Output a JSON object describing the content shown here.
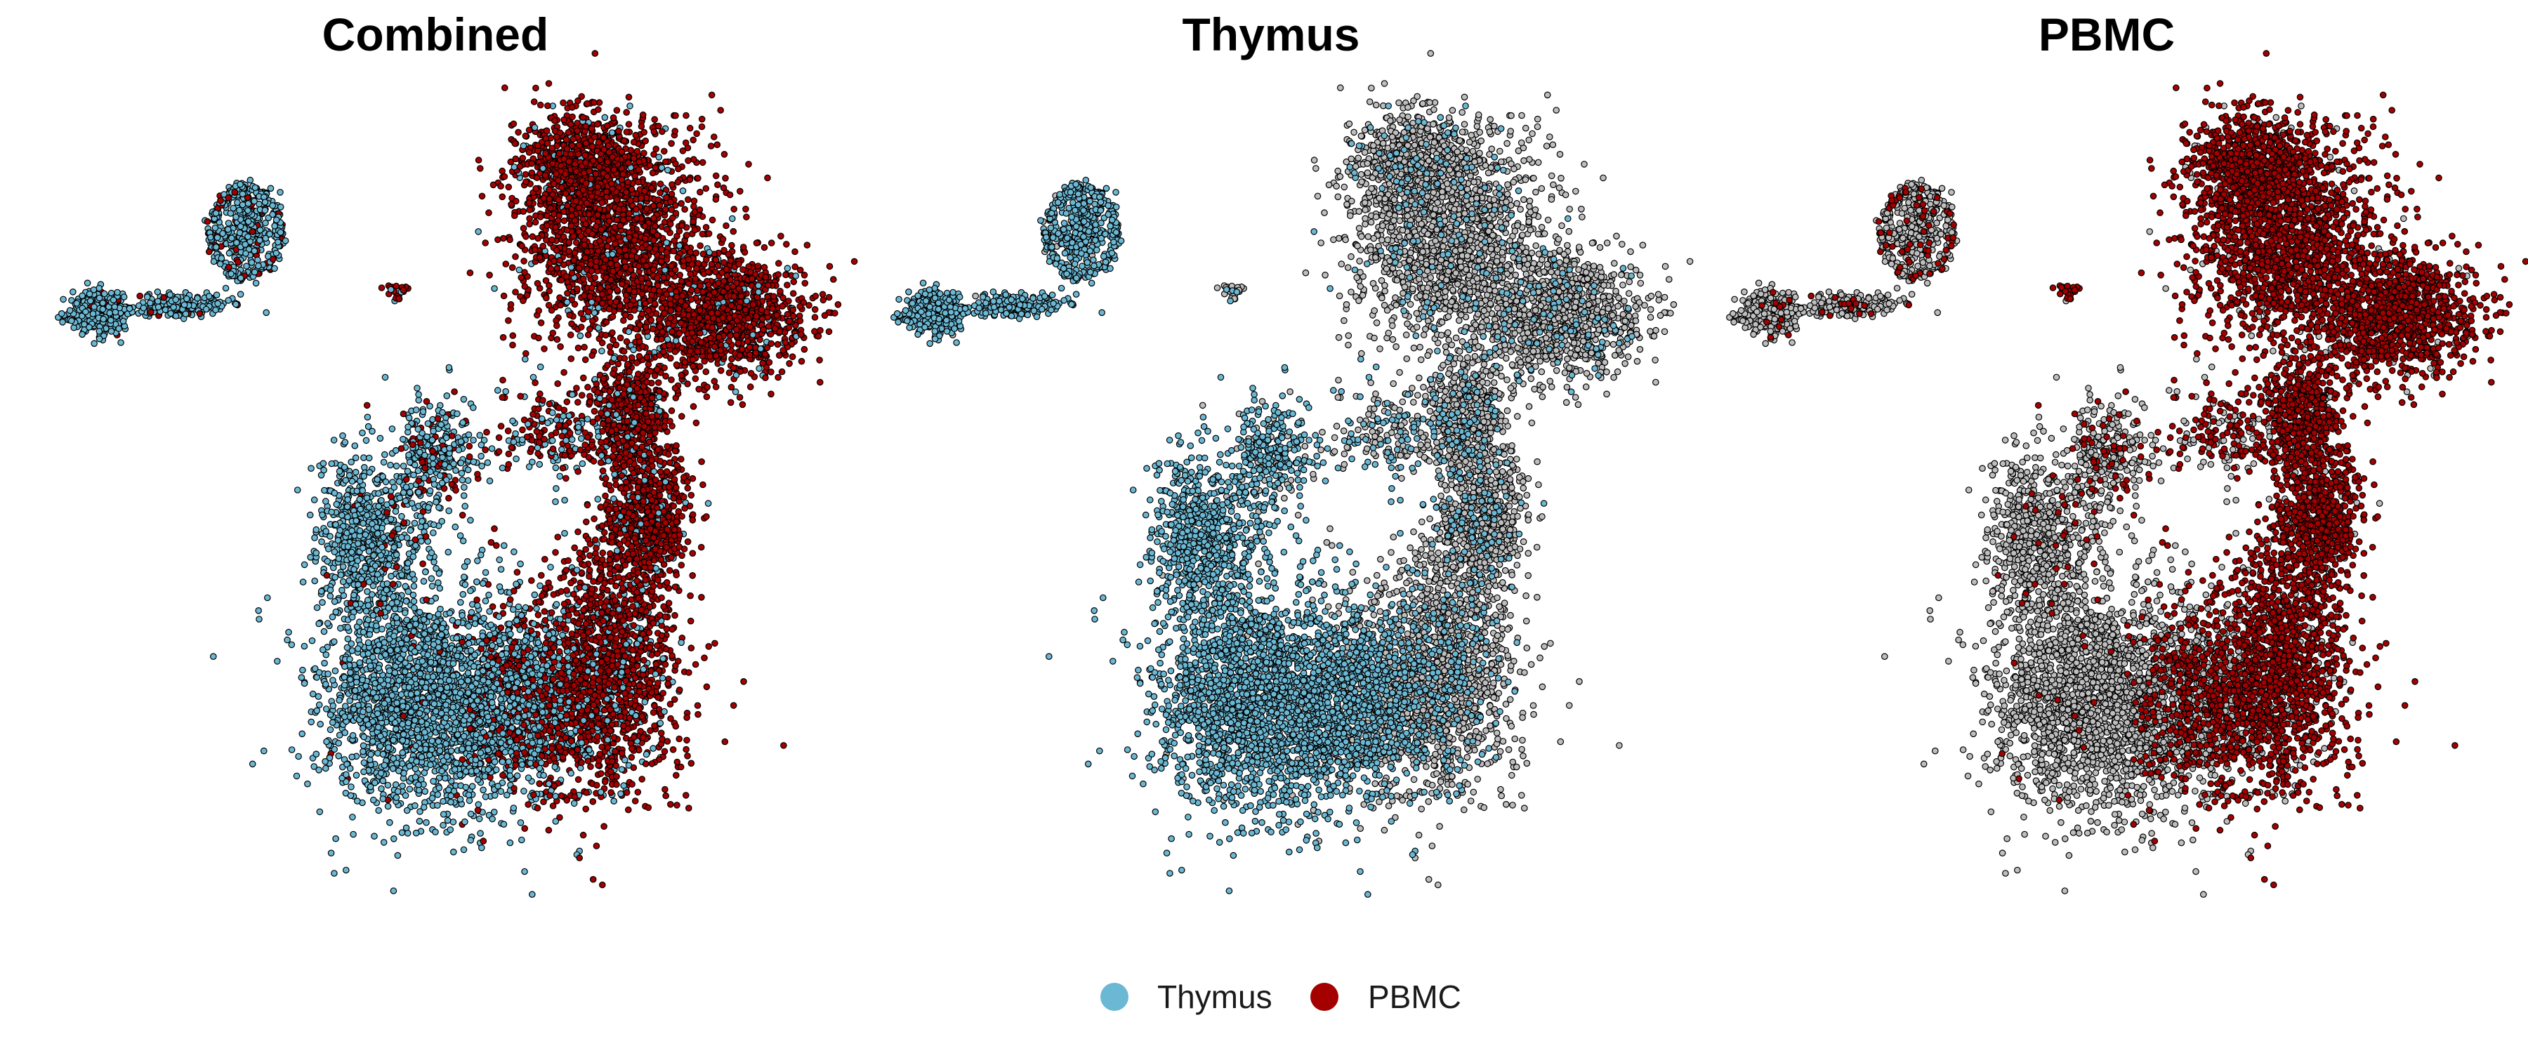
{
  "figure": {
    "panels": [
      {
        "title": "Combined",
        "mode": "combined"
      },
      {
        "title": "Thymus",
        "mode": "highlight-thymus"
      },
      {
        "title": "PBMC",
        "mode": "highlight-pbmc"
      }
    ],
    "legend": {
      "placement": "bottom-center",
      "entries": [
        {
          "label": "Thymus",
          "color": "#6BB8D4"
        },
        {
          "label": "PBMC",
          "color": "#A50000"
        }
      ]
    },
    "colors": {
      "thymus": "#6BB8D4",
      "pbmc": "#A50000",
      "background_cells": "#BEBEBE",
      "outline": "#000000"
    }
  },
  "chart_data": [
    {
      "type": "scatter",
      "title": "Combined",
      "xlabel": "",
      "ylabel": "",
      "grid": false,
      "axes": false,
      "series": [
        {
          "name": "Thymus",
          "color": "#6BB8D4"
        },
        {
          "name": "PBMC",
          "color": "#A50000"
        }
      ]
    },
    {
      "type": "scatter",
      "title": "Thymus",
      "xlabel": "",
      "ylabel": "",
      "grid": false,
      "axes": false,
      "series": [
        {
          "name": "Thymus",
          "color": "#6BB8D4"
        }
      ]
    },
    {
      "type": "scatter",
      "title": "PBMC",
      "xlabel": "",
      "ylabel": "",
      "grid": false,
      "axes": false,
      "series": [
        {
          "name": "PBMC",
          "color": "#A50000"
        }
      ]
    }
  ]
}
